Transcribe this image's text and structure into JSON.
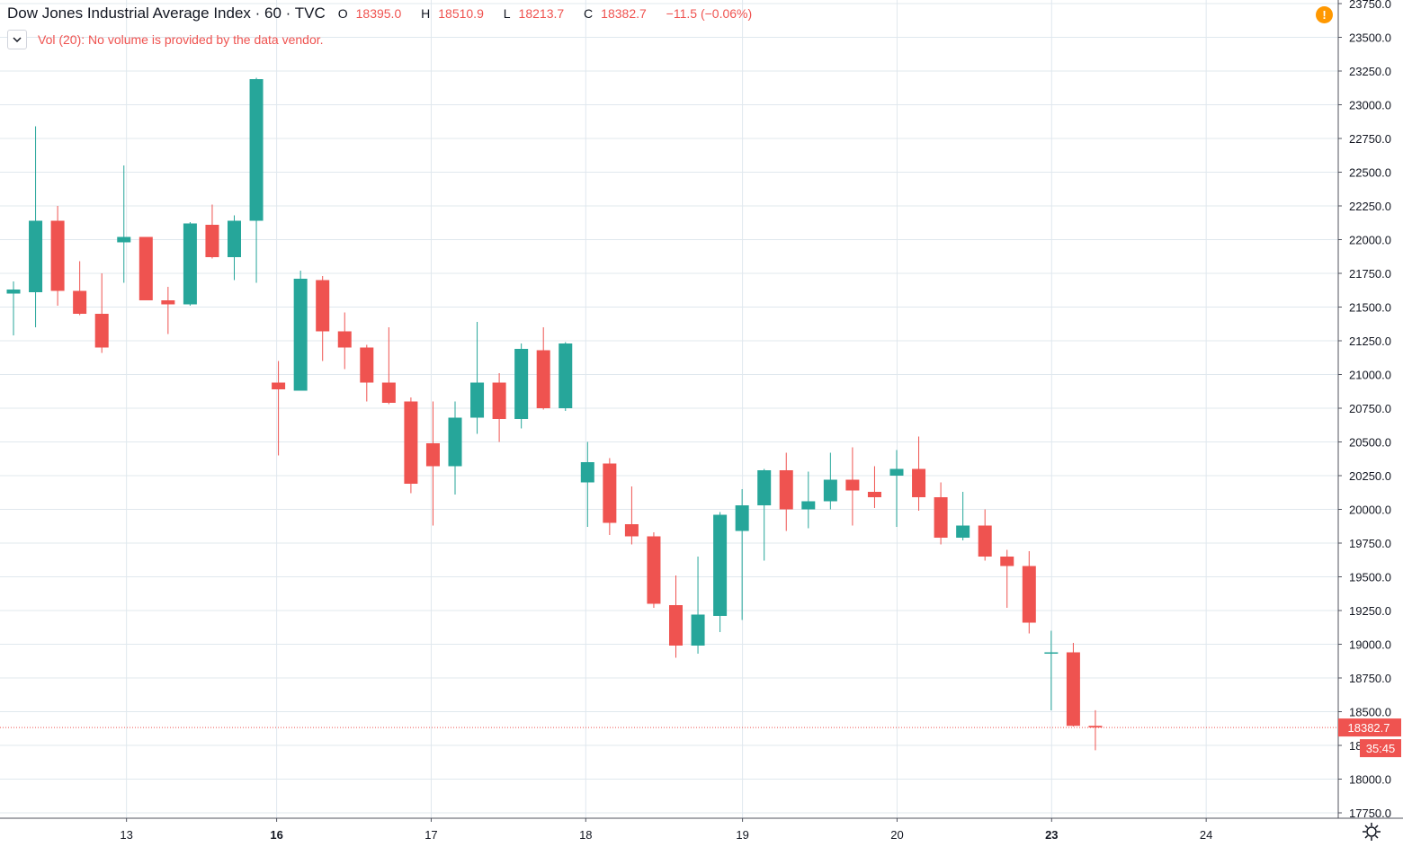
{
  "header": {
    "symbol_title": "Dow Jones Industrial Average Index · 60 · TVC",
    "open_key": "O",
    "open": "18395.0",
    "high_key": "H",
    "high": "18510.9",
    "low_key": "L",
    "low": "18213.7",
    "close_key": "C",
    "close": "18382.7",
    "change": "−11.5 (−0.06%)"
  },
  "volume_notice": "Vol (20): No volume is provided by the data vendor.",
  "price_badge": "18382.7",
  "countdown_badge": "35:45",
  "colors": {
    "up": "#26a69a",
    "down": "#ef5350",
    "grid": "#e0e8ee"
  },
  "icons": [
    "chevron-down-icon",
    "alert-icon",
    "settings-icon"
  ],
  "chart_data": {
    "type": "candlestick",
    "interval": "60",
    "ylim": [
      17750,
      23750
    ],
    "y_ticks": [
      "17750.0",
      "18000.0",
      "18250.0",
      "18500.0",
      "18750.0",
      "19000.0",
      "19250.0",
      "19500.0",
      "19750.0",
      "20000.0",
      "20250.0",
      "20500.0",
      "20750.0",
      "21000.0",
      "21250.0",
      "21500.0",
      "21750.0",
      "22000.0",
      "22250.0",
      "22500.0",
      "22750.0",
      "23000.0",
      "23250.0",
      "23500.0",
      "23750.0"
    ],
    "x_ticks": [
      {
        "label": "13",
        "bold": false
      },
      {
        "label": "16",
        "bold": true
      },
      {
        "label": "17",
        "bold": false
      },
      {
        "label": "18",
        "bold": false
      },
      {
        "label": "19",
        "bold": false
      },
      {
        "label": "20",
        "bold": false
      },
      {
        "label": "23",
        "bold": true
      },
      {
        "label": "24",
        "bold": false
      }
    ],
    "last_price": 18382.7,
    "candles": [
      {
        "o": 21600,
        "h": 21690,
        "l": 21290,
        "c": 21630
      },
      {
        "o": 21610,
        "h": 22840,
        "l": 21350,
        "c": 22140
      },
      {
        "o": 22140,
        "h": 22250,
        "l": 21510,
        "c": 21620
      },
      {
        "o": 21620,
        "h": 21840,
        "l": 21440,
        "c": 21450
      },
      {
        "o": 21450,
        "h": 21750,
        "l": 21160,
        "c": 21200
      },
      {
        "o": 21980,
        "h": 22550,
        "l": 21680,
        "c": 22020
      },
      {
        "o": 22020,
        "h": 22020,
        "l": 21550,
        "c": 21550
      },
      {
        "o": 21550,
        "h": 21650,
        "l": 21300,
        "c": 21520
      },
      {
        "o": 21520,
        "h": 22130,
        "l": 21510,
        "c": 22120
      },
      {
        "o": 22110,
        "h": 22260,
        "l": 21860,
        "c": 21870
      },
      {
        "o": 21870,
        "h": 22180,
        "l": 21700,
        "c": 22140
      },
      {
        "o": 22140,
        "h": 23200,
        "l": 21680,
        "c": 23190
      },
      {
        "o": 20940,
        "h": 21100,
        "l": 20400,
        "c": 20890
      },
      {
        "o": 20880,
        "h": 21770,
        "l": 20880,
        "c": 21710
      },
      {
        "o": 21700,
        "h": 21730,
        "l": 21100,
        "c": 21320
      },
      {
        "o": 21320,
        "h": 21460,
        "l": 21040,
        "c": 21200
      },
      {
        "o": 21200,
        "h": 21220,
        "l": 20800,
        "c": 20940
      },
      {
        "o": 20940,
        "h": 21350,
        "l": 20780,
        "c": 20790
      },
      {
        "o": 20800,
        "h": 20830,
        "l": 20120,
        "c": 20190
      },
      {
        "o": 20490,
        "h": 20800,
        "l": 19880,
        "c": 20320
      },
      {
        "o": 20320,
        "h": 20800,
        "l": 20110,
        "c": 20680
      },
      {
        "o": 20680,
        "h": 21390,
        "l": 20560,
        "c": 20940
      },
      {
        "o": 20940,
        "h": 21010,
        "l": 20500,
        "c": 20670
      },
      {
        "o": 20670,
        "h": 21230,
        "l": 20600,
        "c": 21190
      },
      {
        "o": 21180,
        "h": 21350,
        "l": 20740,
        "c": 20750
      },
      {
        "o": 20750,
        "h": 21240,
        "l": 20730,
        "c": 21230
      },
      {
        "o": 20200,
        "h": 20500,
        "l": 19870,
        "c": 20350
      },
      {
        "o": 20340,
        "h": 20380,
        "l": 19810,
        "c": 19900
      },
      {
        "o": 19890,
        "h": 20170,
        "l": 19740,
        "c": 19800
      },
      {
        "o": 19800,
        "h": 19830,
        "l": 19270,
        "c": 19300
      },
      {
        "o": 19290,
        "h": 19510,
        "l": 18900,
        "c": 18990
      },
      {
        "o": 18990,
        "h": 19650,
        "l": 18930,
        "c": 19220
      },
      {
        "o": 19210,
        "h": 19980,
        "l": 19090,
        "c": 19960
      },
      {
        "o": 19840,
        "h": 20150,
        "l": 19180,
        "c": 20030
      },
      {
        "o": 20030,
        "h": 20300,
        "l": 19620,
        "c": 20290
      },
      {
        "o": 20290,
        "h": 20420,
        "l": 19840,
        "c": 20000
      },
      {
        "o": 20000,
        "h": 20280,
        "l": 19860,
        "c": 20060
      },
      {
        "o": 20060,
        "h": 20420,
        "l": 20000,
        "c": 20220
      },
      {
        "o": 20220,
        "h": 20460,
        "l": 19880,
        "c": 20140
      },
      {
        "o": 20130,
        "h": 20320,
        "l": 20010,
        "c": 20090
      },
      {
        "o": 20250,
        "h": 20440,
        "l": 19870,
        "c": 20300
      },
      {
        "o": 20300,
        "h": 20540,
        "l": 19990,
        "c": 20090
      },
      {
        "o": 20090,
        "h": 20200,
        "l": 19740,
        "c": 19790
      },
      {
        "o": 19790,
        "h": 20130,
        "l": 19770,
        "c": 19880
      },
      {
        "o": 19880,
        "h": 20000,
        "l": 19620,
        "c": 19650
      },
      {
        "o": 19650,
        "h": 19700,
        "l": 19270,
        "c": 19580
      },
      {
        "o": 19580,
        "h": 19690,
        "l": 19080,
        "c": 19160
      },
      {
        "o": 18940,
        "h": 19100,
        "l": 18510,
        "c": 18940
      },
      {
        "o": 18940,
        "h": 19010,
        "l": 18390,
        "c": 18395
      },
      {
        "o": 18395,
        "h": 18511,
        "l": 18214,
        "c": 18383
      }
    ]
  }
}
